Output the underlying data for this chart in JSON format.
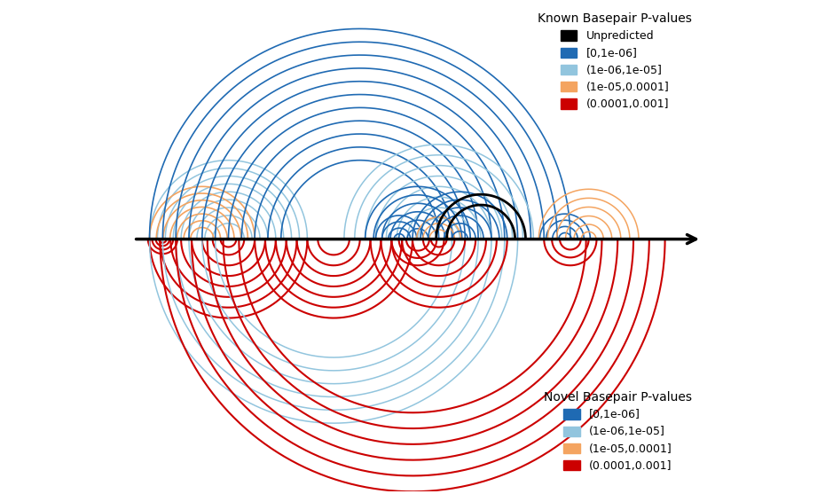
{
  "background_color": "#ffffff",
  "known_legend_title": "Known Basepair P-values",
  "novel_legend_title": "Novel Basepair P-values",
  "legend_entries_known": [
    "Unpredicted",
    "[0,1e-06]",
    "(1e-06,1e-05]",
    "(1e-05,0.0001]",
    "(0.0001,0.001]"
  ],
  "legend_colors_known": [
    "#000000",
    "#1f6ab3",
    "#92c5de",
    "#f4a460",
    "#cc0000"
  ],
  "legend_entries_novel": [
    "[0,1e-06]",
    "(1e-06,1e-05]",
    "(1e-05,0.0001]",
    "(0.0001,0.001]"
  ],
  "legend_colors_novel": [
    "#1f6ab3",
    "#92c5de",
    "#f4a460",
    "#cc0000"
  ],
  "xlim": [
    -0.5,
    10.5
  ],
  "ylim": [
    -4.8,
    4.5
  ]
}
